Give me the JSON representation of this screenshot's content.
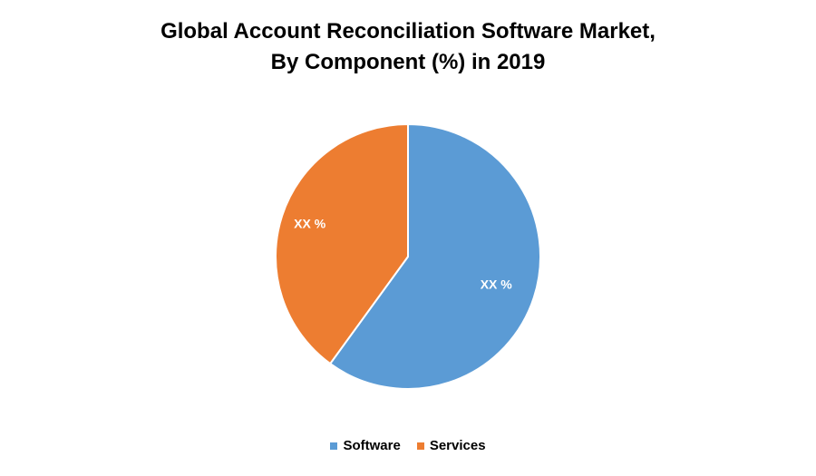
{
  "chart_data": {
    "type": "pie",
    "title_lines": [
      "Global Account Reconciliation Software Market,",
      "By Component (%) in 2019"
    ],
    "slices": [
      {
        "name": "Software",
        "value": 60,
        "label": "XX %",
        "color": "#5B9BD5"
      },
      {
        "name": "Services",
        "value": 40,
        "label": "XX %",
        "color": "#ED7D31"
      }
    ],
    "start_angle_deg": 0,
    "direction": "clockwise",
    "legend_position": "bottom"
  }
}
